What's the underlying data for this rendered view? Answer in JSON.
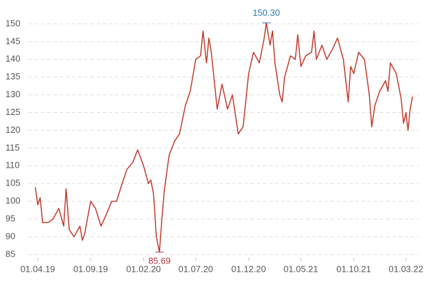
{
  "chart_data": {
    "type": "line",
    "x": [
      "25.03.19",
      "01.04.19",
      "08.04.19",
      "15.04.19",
      "01.05.19",
      "15.05.19",
      "01.06.19",
      "15.06.19",
      "22.06.19",
      "01.07.19",
      "15.07.19",
      "01.08.19",
      "08.08.19",
      "15.08.19",
      "01.09.19",
      "15.09.19",
      "01.10.19",
      "15.10.19",
      "01.11.19",
      "15.11.19",
      "01.12.19",
      "15.12.19",
      "01.01.20",
      "15.01.20",
      "01.02.20",
      "15.02.20",
      "22.02.20",
      "01.03.20",
      "09.03.20",
      "18.03.20",
      "25.03.20",
      "01.04.20",
      "15.04.20",
      "01.05.20",
      "15.05.20",
      "01.06.20",
      "15.06.20",
      "01.07.20",
      "15.07.20",
      "22.07.20",
      "01.08.20",
      "08.08.20",
      "15.08.20",
      "01.09.20",
      "15.09.20",
      "01.10.20",
      "15.10.20",
      "01.11.20",
      "15.11.20",
      "01.12.20",
      "15.12.20",
      "01.01.21",
      "15.01.21",
      "21.01.21",
      "01.02.21",
      "08.02.21",
      "15.02.21",
      "01.03.21",
      "08.03.21",
      "15.03.21",
      "01.04.21",
      "15.04.21",
      "22.04.21",
      "01.05.21",
      "15.05.21",
      "01.06.21",
      "08.06.21",
      "15.06.21",
      "01.07.21",
      "15.07.21",
      "01.08.21",
      "15.08.21",
      "01.09.21",
      "15.09.21",
      "22.09.21",
      "01.10.21",
      "15.10.21",
      "01.11.21",
      "15.11.21",
      "22.11.21",
      "01.12.21",
      "15.12.21",
      "01.01.22",
      "08.01.22",
      "15.01.22",
      "01.02.22",
      "15.02.22",
      "22.02.22",
      "01.03.22",
      "07.03.22",
      "13.03.22",
      "20.03.22"
    ],
    "series": [
      {
        "color": "#c0392b",
        "values": [
          104,
          99,
          101,
          94,
          94,
          95,
          98,
          93,
          103.5,
          92,
          90,
          93,
          89,
          91,
          100,
          98,
          93,
          96,
          100,
          100,
          105,
          109,
          111,
          114.5,
          110,
          105,
          106,
          102,
          90,
          85.69,
          95,
          103,
          113,
          117,
          119,
          127,
          131,
          140,
          141,
          148,
          139,
          146,
          142,
          126,
          133,
          126,
          130,
          119,
          121,
          136,
          142,
          139,
          146,
          150.3,
          144,
          148,
          139,
          130,
          128,
          135,
          141,
          140,
          147,
          138,
          141,
          142,
          148,
          140,
          144,
          140,
          143,
          146,
          140,
          128,
          138,
          136,
          142,
          140,
          130,
          121,
          127,
          131,
          134,
          131,
          139,
          136,
          129,
          122,
          125,
          120,
          126,
          129.5
        ]
      }
    ],
    "xlim": [
      "06.03.19",
      "08.04.22"
    ],
    "xticks": [
      "01.04.19",
      "01.09.19",
      "01.02.20",
      "01.07.20",
      "01.12.20",
      "01.05.21",
      "01.10.21",
      "01.03.22"
    ],
    "ylim": [
      84,
      155
    ],
    "yticks": [
      85,
      90,
      95,
      100,
      105,
      110,
      115,
      120,
      125,
      130,
      135,
      140,
      145,
      150
    ],
    "grid": true,
    "annotations": [
      {
        "text": "150.30",
        "x": "21.01.21",
        "y": 150.3,
        "color": "#2a7ab8",
        "position": "above"
      },
      {
        "text": "85.69",
        "x": "18.03.20",
        "y": 85.69,
        "color": "#b0303e",
        "position": "below"
      }
    ]
  }
}
